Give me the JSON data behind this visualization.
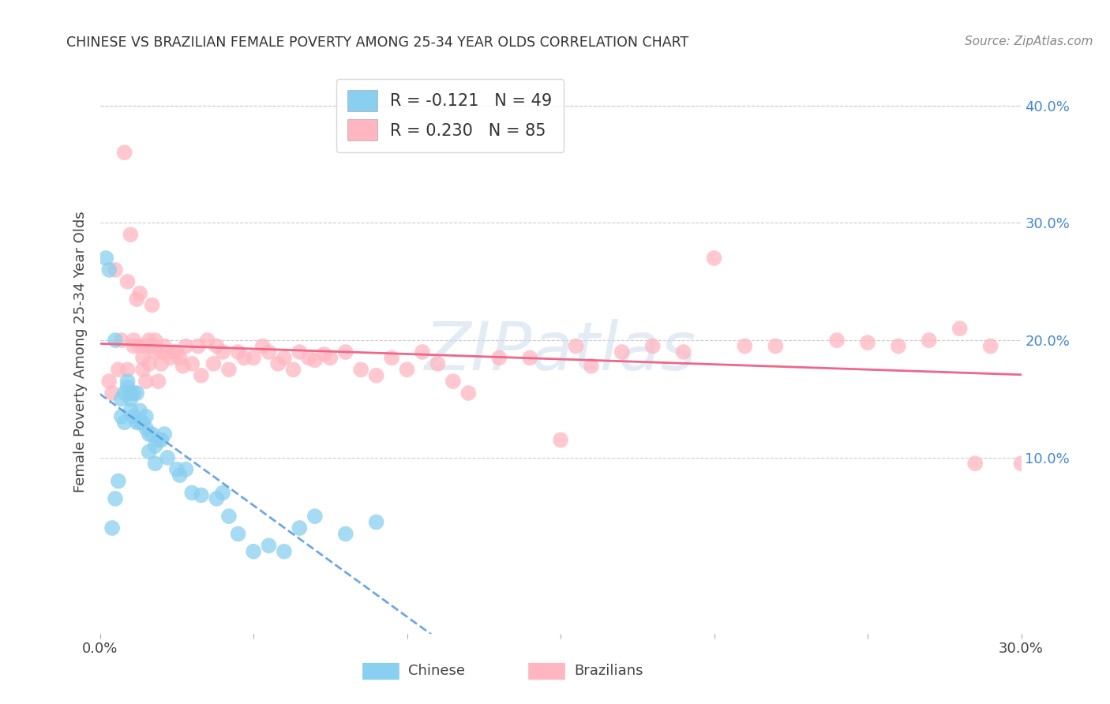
{
  "title": "CHINESE VS BRAZILIAN FEMALE POVERTY AMONG 25-34 YEAR OLDS CORRELATION CHART",
  "source": "Source: ZipAtlas.com",
  "ylabel": "Female Poverty Among 25-34 Year Olds",
  "xlim": [
    0.0,
    0.3
  ],
  "ylim": [
    -0.05,
    0.43
  ],
  "xticks": [
    0.0,
    0.05,
    0.1,
    0.15,
    0.2,
    0.25,
    0.3
  ],
  "xtick_labels": [
    "0.0%",
    "",
    "",
    "",
    "",
    "",
    "30.0%"
  ],
  "yticks_right": [
    0.1,
    0.2,
    0.3,
    0.4
  ],
  "ytick_labels_right": [
    "10.0%",
    "20.0%",
    "30.0%",
    "40.0%"
  ],
  "grid_color": "#cccccc",
  "background_color": "#ffffff",
  "chinese_color": "#89CFF0",
  "brazilian_color": "#FFB6C1",
  "chinese_line_color": "#5599DD",
  "chinese_line_dash": "dashed",
  "brazilian_line_color": "#EE6688",
  "brazilian_line_style": "solid",
  "legend_chinese_label": "R = -0.121   N = 49",
  "legend_brazilian_label": "R = 0.230   N = 85",
  "watermark_text": "ZIPatlas",
  "chinese_x": [
    0.002,
    0.003,
    0.004,
    0.005,
    0.005,
    0.006,
    0.007,
    0.007,
    0.008,
    0.008,
    0.009,
    0.009,
    0.01,
    0.01,
    0.01,
    0.011,
    0.011,
    0.012,
    0.012,
    0.013,
    0.013,
    0.014,
    0.015,
    0.015,
    0.016,
    0.016,
    0.017,
    0.018,
    0.018,
    0.019,
    0.02,
    0.021,
    0.022,
    0.025,
    0.026,
    0.028,
    0.03,
    0.033,
    0.038,
    0.04,
    0.042,
    0.045,
    0.05,
    0.055,
    0.06,
    0.065,
    0.07,
    0.08,
    0.09
  ],
  "chinese_y": [
    0.27,
    0.26,
    0.04,
    0.2,
    0.065,
    0.08,
    0.15,
    0.135,
    0.155,
    0.13,
    0.16,
    0.165,
    0.14,
    0.15,
    0.155,
    0.135,
    0.155,
    0.13,
    0.155,
    0.13,
    0.14,
    0.13,
    0.125,
    0.135,
    0.12,
    0.105,
    0.12,
    0.095,
    0.11,
    0.115,
    0.115,
    0.12,
    0.1,
    0.09,
    0.085,
    0.09,
    0.07,
    0.068,
    0.065,
    0.07,
    0.05,
    0.035,
    0.02,
    0.025,
    0.02,
    0.04,
    0.05,
    0.035,
    0.045
  ],
  "brazilian_x": [
    0.003,
    0.004,
    0.005,
    0.006,
    0.007,
    0.008,
    0.009,
    0.009,
    0.01,
    0.01,
    0.011,
    0.011,
    0.012,
    0.013,
    0.013,
    0.014,
    0.014,
    0.015,
    0.015,
    0.016,
    0.016,
    0.017,
    0.017,
    0.018,
    0.018,
    0.019,
    0.02,
    0.02,
    0.021,
    0.022,
    0.023,
    0.024,
    0.025,
    0.026,
    0.027,
    0.028,
    0.03,
    0.032,
    0.033,
    0.035,
    0.037,
    0.038,
    0.04,
    0.042,
    0.045,
    0.047,
    0.05,
    0.053,
    0.055,
    0.058,
    0.06,
    0.063,
    0.065,
    0.068,
    0.07,
    0.073,
    0.075,
    0.08,
    0.085,
    0.09,
    0.095,
    0.1,
    0.105,
    0.11,
    0.115,
    0.12,
    0.13,
    0.14,
    0.15,
    0.155,
    0.16,
    0.17,
    0.18,
    0.19,
    0.2,
    0.21,
    0.22,
    0.24,
    0.25,
    0.26,
    0.27,
    0.28,
    0.285,
    0.29,
    0.3
  ],
  "brazilian_y": [
    0.165,
    0.155,
    0.26,
    0.175,
    0.2,
    0.36,
    0.175,
    0.25,
    0.155,
    0.29,
    0.195,
    0.2,
    0.235,
    0.195,
    0.24,
    0.185,
    0.175,
    0.165,
    0.195,
    0.18,
    0.2,
    0.23,
    0.195,
    0.2,
    0.19,
    0.165,
    0.18,
    0.19,
    0.195,
    0.19,
    0.185,
    0.19,
    0.19,
    0.185,
    0.178,
    0.195,
    0.18,
    0.195,
    0.17,
    0.2,
    0.18,
    0.195,
    0.19,
    0.175,
    0.19,
    0.185,
    0.185,
    0.195,
    0.19,
    0.18,
    0.185,
    0.175,
    0.19,
    0.185,
    0.183,
    0.188,
    0.185,
    0.19,
    0.175,
    0.17,
    0.185,
    0.175,
    0.19,
    0.18,
    0.165,
    0.155,
    0.185,
    0.185,
    0.115,
    0.195,
    0.178,
    0.19,
    0.195,
    0.19,
    0.27,
    0.195,
    0.195,
    0.2,
    0.198,
    0.195,
    0.2,
    0.21,
    0.095,
    0.195,
    0.095
  ]
}
